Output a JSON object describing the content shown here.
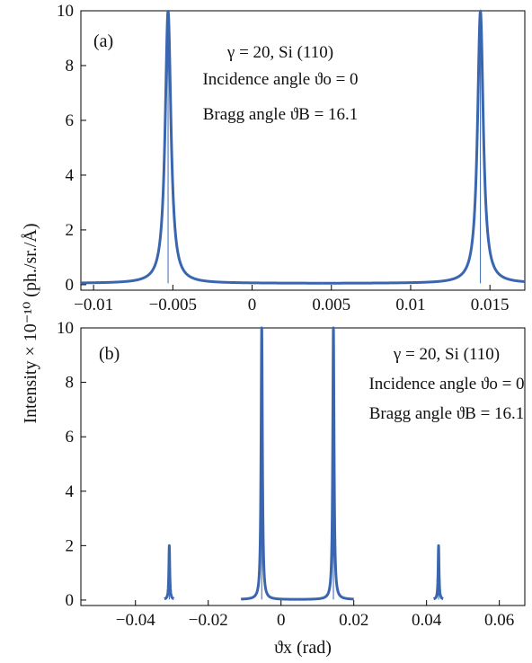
{
  "figure": {
    "ylabel": "Intensity × 10⁻¹⁰  (ph./sr./Å)",
    "xlabel": "ϑx  (rad)"
  },
  "chart_data": [
    {
      "type": "line",
      "panel_label": "(a)",
      "annotation": [
        "γ = 20, Si (110)",
        "Incidence angle ϑo = 0",
        "Bragg angle ϑB = 16.1"
      ],
      "xlim": [
        -0.0108,
        0.0172
      ],
      "ylim": [
        -0.2,
        10
      ],
      "xticks": [
        -0.01,
        -0.005,
        0,
        0.005,
        0.01,
        0.015
      ],
      "xtick_labels": [
        "−0.01",
        "−0.005",
        "0",
        "0.005",
        "0.01",
        "0.015"
      ],
      "yticks": [
        0,
        2,
        4,
        6,
        8,
        10
      ],
      "ytick_labels": [
        "0",
        "2",
        "4",
        "6",
        "8",
        "10"
      ],
      "color": "#3a66b0",
      "peaks": [
        {
          "center": -0.0053,
          "height": 10,
          "width": 0.00022,
          "bounds": [
            -0.0108,
            0.0045
          ]
        },
        {
          "center": 0.0144,
          "height": 10,
          "width": 0.00022,
          "bounds": [
            0.0045,
            0.0172
          ]
        }
      ],
      "baseline": 0.05
    },
    {
      "type": "line",
      "panel_label": "(b)",
      "annotation": [
        "γ = 20, Si (110)",
        "Incidence angle ϑo = 0",
        "Bragg angle ϑB = 16.1"
      ],
      "xlim": [
        -0.055,
        0.067
      ],
      "ylim": [
        -0.2,
        10
      ],
      "xticks": [
        -0.04,
        -0.02,
        0,
        0.02,
        0.04,
        0.06
      ],
      "xtick_labels": [
        "−0.04",
        "−0.02",
        "0",
        "0.02",
        "0.04",
        "0.06"
      ],
      "yticks": [
        0,
        2,
        4,
        6,
        8,
        10
      ],
      "ytick_labels": [
        "0",
        "2",
        "4",
        "6",
        "8",
        "10"
      ],
      "color": "#3a66b0",
      "peaks": [
        {
          "center": -0.0053,
          "height": 10,
          "width": 0.00022,
          "bounds": [
            -0.011,
            0.0045
          ]
        },
        {
          "center": 0.0144,
          "height": 10,
          "width": 0.00022,
          "bounds": [
            0.0045,
            0.02
          ]
        },
        {
          "center": -0.0307,
          "height": 2,
          "width": 0.00015,
          "bounds": [
            -0.032,
            -0.0295
          ]
        },
        {
          "center": 0.0433,
          "height": 2,
          "width": 0.00015,
          "bounds": [
            0.042,
            0.0445
          ]
        }
      ],
      "baseline": 0.02
    }
  ]
}
